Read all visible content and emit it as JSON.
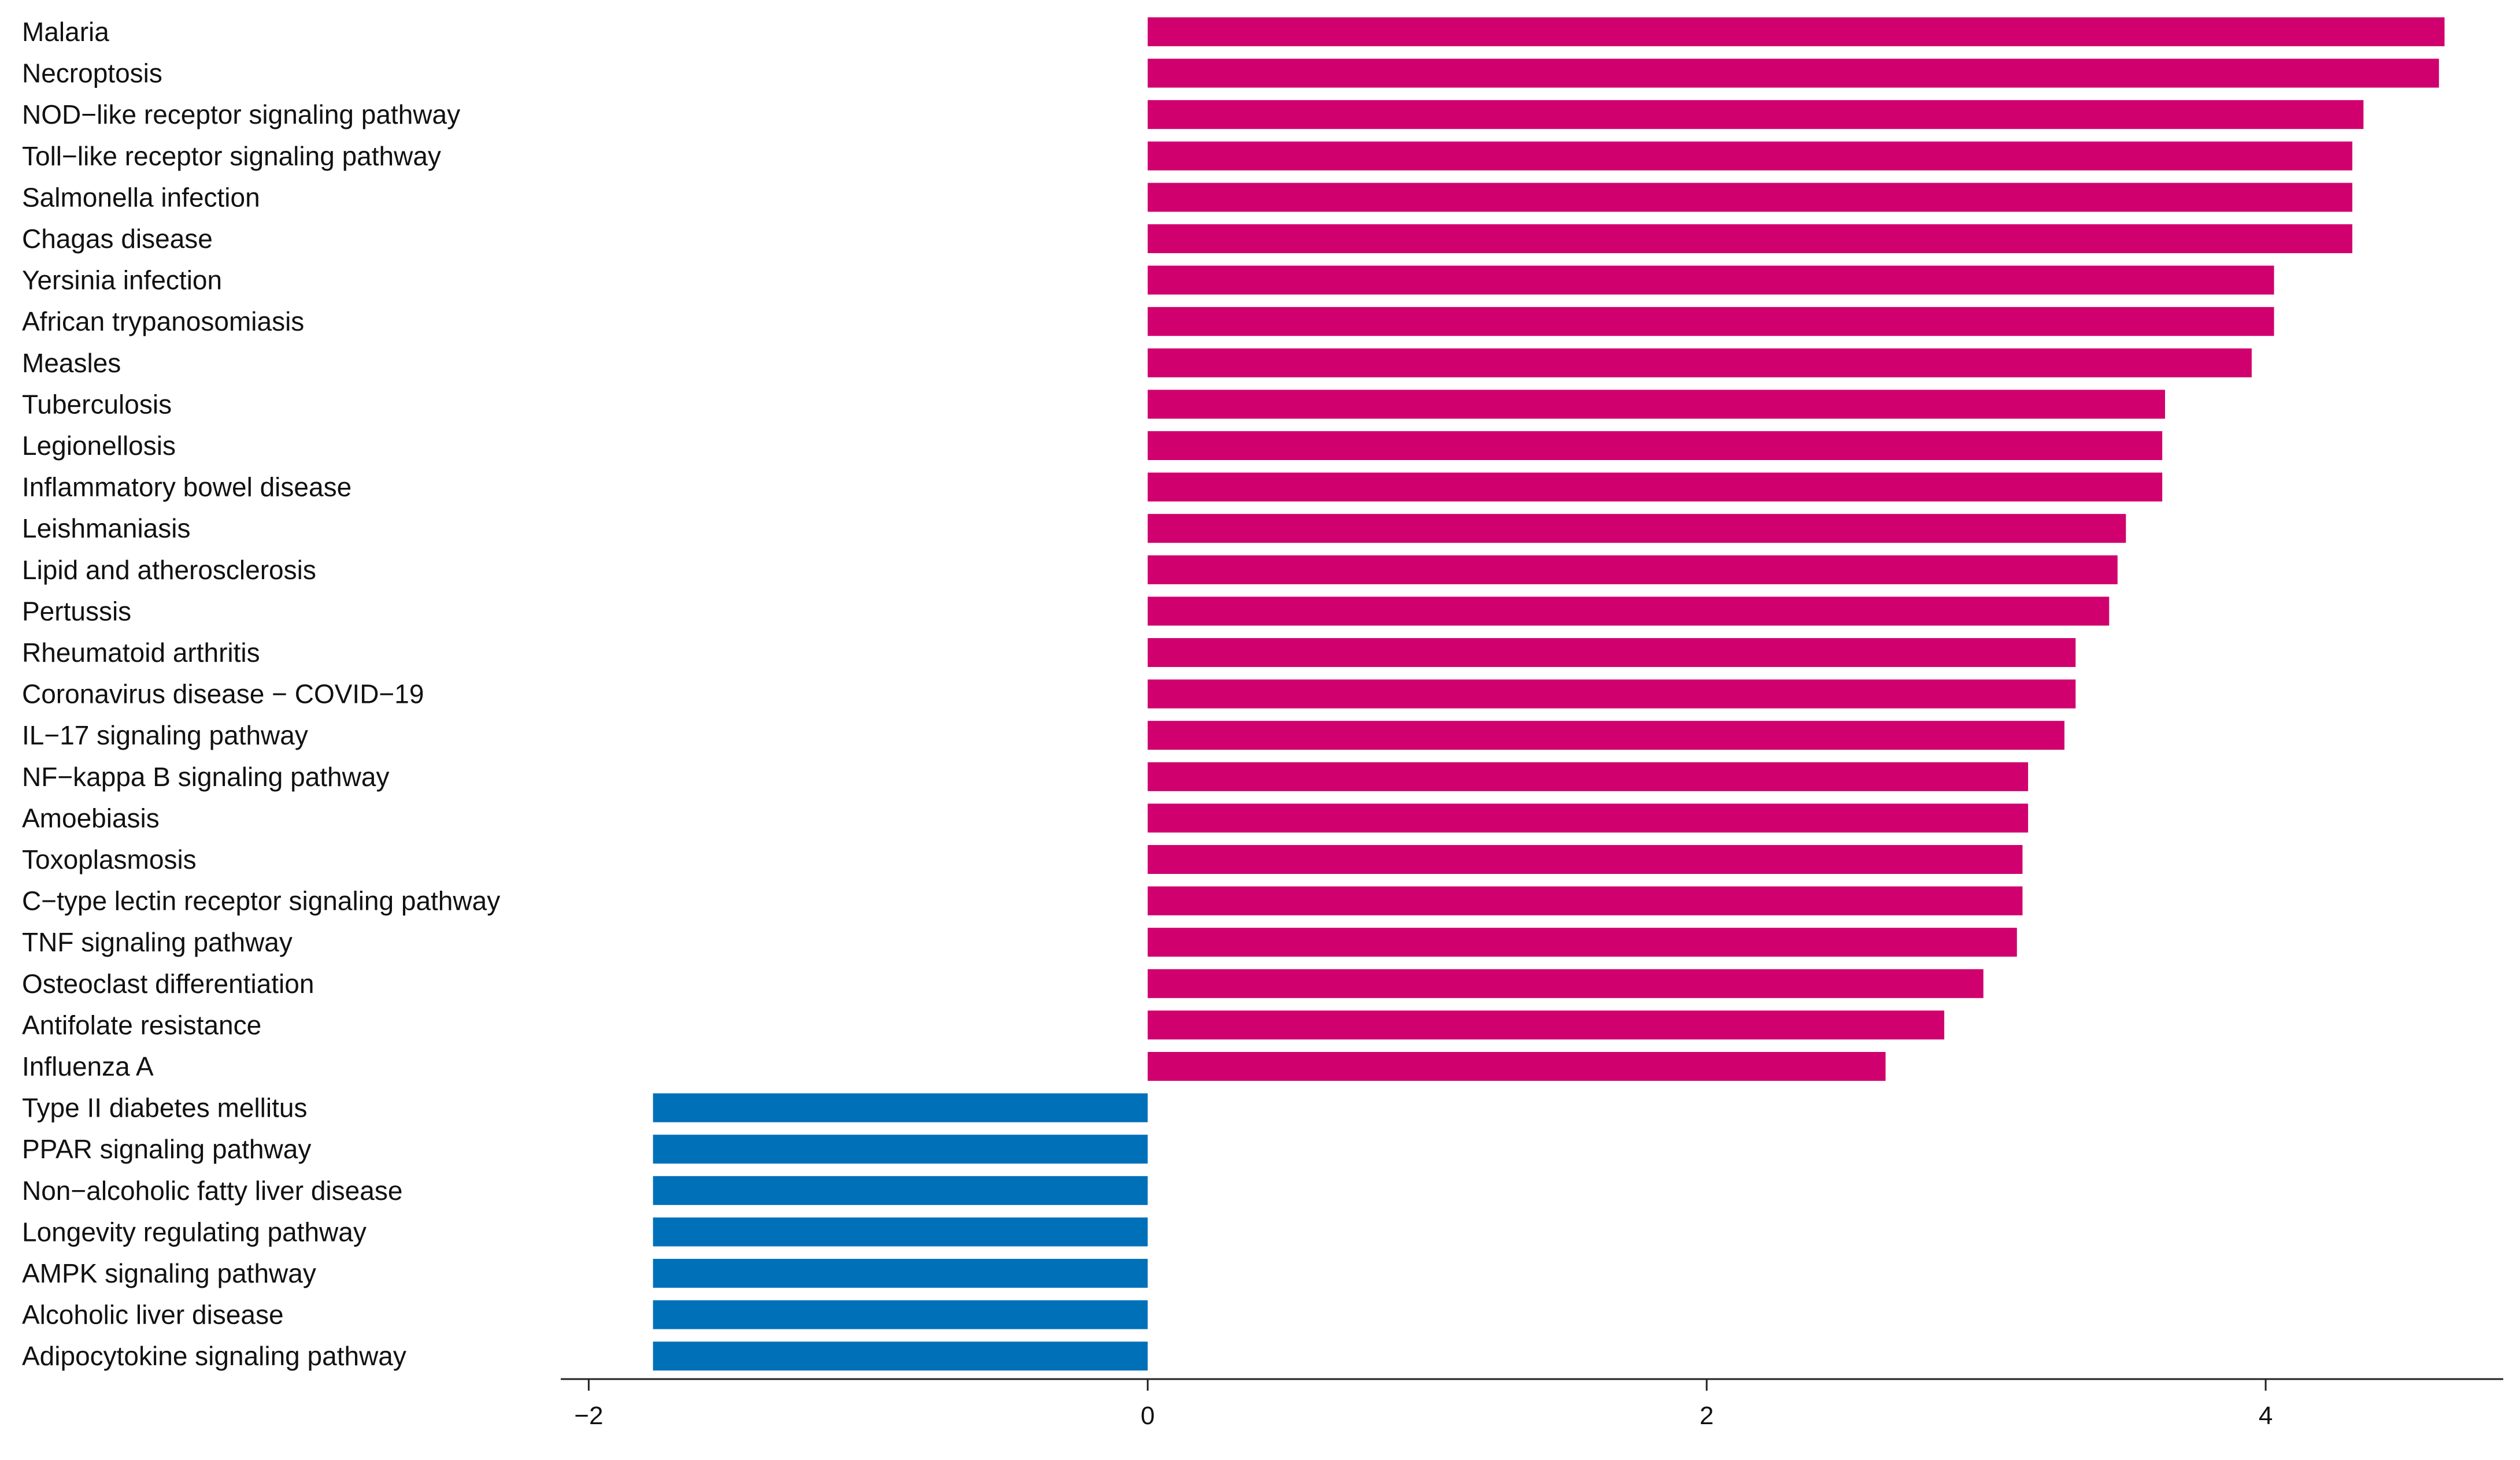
{
  "chart_data": {
    "type": "bar",
    "orientation": "horizontal",
    "title": "",
    "xlabel": "",
    "ylabel": "",
    "xlim": [
      -2.1,
      4.85
    ],
    "xticks": [
      -2,
      0,
      2,
      4
    ],
    "xtick_labels": [
      "−2",
      "0",
      "2",
      "4"
    ],
    "grid": false,
    "legend": "none",
    "colors": {
      "positive": "#D0006F",
      "negative": "#0070B8"
    },
    "categories": [
      "Malaria",
      "Necroptosis",
      "NOD−like receptor signaling pathway",
      "Toll−like receptor signaling pathway",
      "Salmonella infection",
      "Chagas disease",
      "Yersinia infection",
      "African trypanosomiasis",
      "Measles",
      "Tuberculosis",
      "Legionellosis",
      "Inflammatory bowel disease",
      "Leishmaniasis",
      "Lipid and atherosclerosis",
      "Pertussis",
      "Rheumatoid arthritis",
      "Coronavirus disease − COVID−19",
      "IL−17 signaling pathway",
      "NF−kappa B signaling pathway",
      "Amoebiasis",
      "Toxoplasmosis",
      "C−type lectin receptor signaling pathway",
      "TNF signaling pathway",
      "Osteoclast differentiation",
      "Antifolate resistance",
      "Influenza A",
      "Type II diabetes mellitus",
      "PPAR signaling pathway",
      "Non−alcoholic fatty liver disease",
      "Longevity regulating pathway",
      "AMPK signaling pathway",
      "Alcoholic liver disease",
      "Adipocytokine signaling pathway"
    ],
    "values": [
      4.64,
      4.62,
      4.35,
      4.31,
      4.31,
      4.31,
      4.03,
      4.03,
      3.95,
      3.64,
      3.63,
      3.63,
      3.5,
      3.47,
      3.44,
      3.32,
      3.32,
      3.28,
      3.15,
      3.15,
      3.13,
      3.13,
      3.11,
      2.99,
      2.85,
      2.64,
      -1.77,
      -1.77,
      -1.77,
      -1.77,
      -1.77,
      -1.77,
      -1.77
    ]
  }
}
